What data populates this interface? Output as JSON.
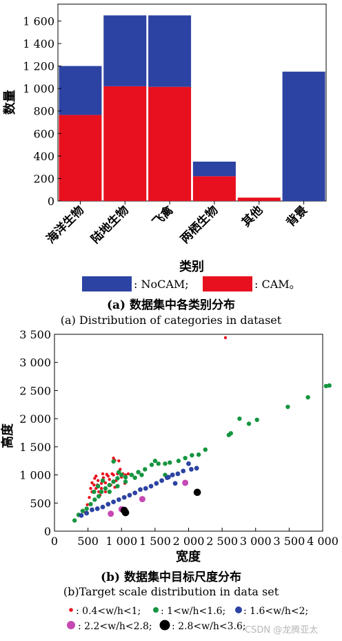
{
  "chart_data": [
    {
      "type": "bar",
      "stacked": true,
      "categories": [
        "海洋生物",
        "陆地生物",
        "飞禽",
        "两栖生物",
        "其他",
        "背景"
      ],
      "series": [
        {
          "name": "CAM",
          "color": "#e8101e",
          "values": [
            765,
            1020,
            1015,
            220,
            30,
            0
          ]
        },
        {
          "name": "NoCAM",
          "color": "#2c43a3",
          "values": [
            435,
            630,
            635,
            130,
            0,
            1150
          ]
        }
      ],
      "ylim": [
        0,
        1750
      ],
      "yticks": [
        0,
        200,
        400,
        600,
        800,
        1000,
        1200,
        1400,
        1600
      ],
      "ytick_labels": [
        "0",
        "200",
        "400",
        "600",
        "800",
        "1 000",
        "1 200",
        "1 400",
        "1 600"
      ],
      "xlabel": "类别",
      "ylabel": "数量",
      "legend": [
        {
          "series": "NoCAM",
          "text": ": NoCAM;"
        },
        {
          "series": "CAM",
          "text": ": CAM。"
        }
      ],
      "caption_cn": "(a) 数据集中各类别分布",
      "caption_en": "(a) Distribution of categories in dataset"
    },
    {
      "type": "scatter",
      "xlim": [
        0,
        4000
      ],
      "ylim": [
        0,
        3500
      ],
      "xticks": [
        0,
        500,
        1000,
        1500,
        2000,
        2500,
        3000,
        3500,
        4000
      ],
      "xtick_labels": [
        "0",
        "500",
        "1 000",
        "1 500",
        "2 000",
        "2 500",
        "3 000",
        "3 500",
        "4 000"
      ],
      "yticks": [
        0,
        500,
        1000,
        1500,
        2000,
        2500,
        3000,
        3500
      ],
      "ytick_labels": [
        "0",
        "500",
        "1 000",
        "1 500",
        "2 000",
        "2 500",
        "3 000",
        "3 500"
      ],
      "xlabel": "宽度",
      "ylabel": "高度",
      "series": [
        {
          "name": "0.4<w/h<1",
          "color": "#e8101e",
          "size": 2.2,
          "points": [
            [
              460,
              330
            ],
            [
              490,
              470
            ],
            [
              520,
              600
            ],
            [
              560,
              700
            ],
            [
              590,
              820
            ],
            [
              620,
              760
            ],
            [
              650,
              900
            ],
            [
              680,
              640
            ],
            [
              700,
              850
            ],
            [
              730,
              950
            ],
            [
              760,
              700
            ],
            [
              800,
              980
            ],
            [
              840,
              820
            ],
            [
              880,
              1000
            ],
            [
              920,
              900
            ],
            [
              950,
              1050
            ],
            [
              1000,
              960
            ],
            [
              880,
              1300
            ],
            [
              900,
              1260
            ],
            [
              960,
              1250
            ],
            [
              980,
              1100
            ],
            [
              1050,
              850
            ],
            [
              2550,
              3440
            ],
            [
              560,
              860
            ],
            [
              620,
              980
            ],
            [
              720,
              1020
            ],
            [
              780,
              1010
            ],
            [
              860,
              1020
            ],
            [
              940,
              1020
            ],
            [
              1020,
              1020
            ],
            [
              1100,
              1020
            ],
            [
              640,
              820
            ],
            [
              600,
              940
            ],
            [
              760,
              860
            ],
            [
              820,
              920
            ],
            [
              900,
              780
            ],
            [
              700,
              760
            ],
            [
              540,
              760
            ],
            [
              660,
              700
            ],
            [
              1060,
              1000
            ]
          ]
        },
        {
          "name": "1<w/h<1.6",
          "color": "#159540",
          "size": 3.2,
          "points": [
            [
              300,
              190
            ],
            [
              360,
              290
            ],
            [
              420,
              360
            ],
            [
              480,
              400
            ],
            [
              540,
              480
            ],
            [
              600,
              560
            ],
            [
              660,
              620
            ],
            [
              700,
              700
            ],
            [
              760,
              760
            ],
            [
              820,
              820
            ],
            [
              880,
              880
            ],
            [
              940,
              940
            ],
            [
              1000,
              1000
            ],
            [
              1060,
              960
            ],
            [
              1150,
              1000
            ],
            [
              1250,
              1050
            ],
            [
              1350,
              1100
            ],
            [
              1450,
              1180
            ],
            [
              1500,
              1250
            ],
            [
              1550,
              1200
            ],
            [
              1650,
              1200
            ],
            [
              1720,
              1220
            ],
            [
              1850,
              1250
            ],
            [
              1950,
              1300
            ],
            [
              2050,
              1350
            ],
            [
              2150,
              1360
            ],
            [
              2250,
              1450
            ],
            [
              2600,
              1710
            ],
            [
              2630,
              1740
            ],
            [
              2760,
              2000
            ],
            [
              2900,
              1910
            ],
            [
              3020,
              1980
            ],
            [
              3480,
              2210
            ],
            [
              3780,
              2380
            ],
            [
              4050,
              2580
            ],
            [
              4100,
              2590
            ],
            [
              2000,
              1200
            ],
            [
              1650,
              1000
            ],
            [
              880,
              1240
            ],
            [
              960,
              1050
            ],
            [
              720,
              900
            ],
            [
              650,
              800
            ],
            [
              590,
              700
            ],
            [
              1200,
              950
            ],
            [
              1300,
              1000
            ],
            [
              820,
              700
            ],
            [
              940,
              800
            ],
            [
              1060,
              880
            ]
          ]
        },
        {
          "name": "1.6<w/h<2",
          "color": "#2c43a3",
          "size": 3.4,
          "points": [
            [
              400,
              280
            ],
            [
              480,
              320
            ],
            [
              560,
              380
            ],
            [
              640,
              400
            ],
            [
              720,
              430
            ],
            [
              800,
              480
            ],
            [
              880,
              520
            ],
            [
              960,
              560
            ],
            [
              1040,
              600
            ],
            [
              1120,
              640
            ],
            [
              1200,
              680
            ],
            [
              1280,
              740
            ],
            [
              1360,
              760
            ],
            [
              1440,
              800
            ],
            [
              1520,
              850
            ],
            [
              1600,
              900
            ],
            [
              1680,
              950
            ],
            [
              1760,
              1000
            ],
            [
              1840,
              1020
            ],
            [
              1920,
              1070
            ],
            [
              2040,
              1100
            ],
            [
              2120,
              1120
            ],
            [
              1800,
              850
            ],
            [
              2000,
              1200
            ],
            [
              1700,
              960
            ]
          ]
        },
        {
          "name": "2.2<w/h<2.8",
          "color": "#c548b3",
          "size": 4.5,
          "points": [
            [
              840,
              310
            ],
            [
              1000,
              390
            ],
            [
              1310,
              570
            ],
            [
              1950,
              860
            ]
          ]
        },
        {
          "name": "2.8<w/h<3.6",
          "color": "#000000",
          "size": 5.3,
          "points": [
            [
              1060,
              330
            ],
            [
              1040,
              370
            ],
            [
              2130,
              690
            ]
          ]
        }
      ],
      "legend": [
        {
          "series": "0.4<w/h<1",
          "text": ": 0.4<w/h<1;"
        },
        {
          "series": "1<w/h<1.6",
          "text": ": 1<w/h<1.6;"
        },
        {
          "series": "1.6<w/h<2",
          "text": ": 1.6<w/h<2;"
        },
        {
          "series": "2.2<w/h<2.8",
          "text": ": 2.2<w/h<2.8;"
        },
        {
          "series": "2.8<w/h<3.6",
          "text": ": 2.8<w/h<3.6;"
        }
      ],
      "caption_cn": "(b) 数据集中目标尺度分布",
      "caption_en": "(b)Target scale distribution in data set"
    }
  ],
  "watermark": "CSDN @龙腾亚太"
}
